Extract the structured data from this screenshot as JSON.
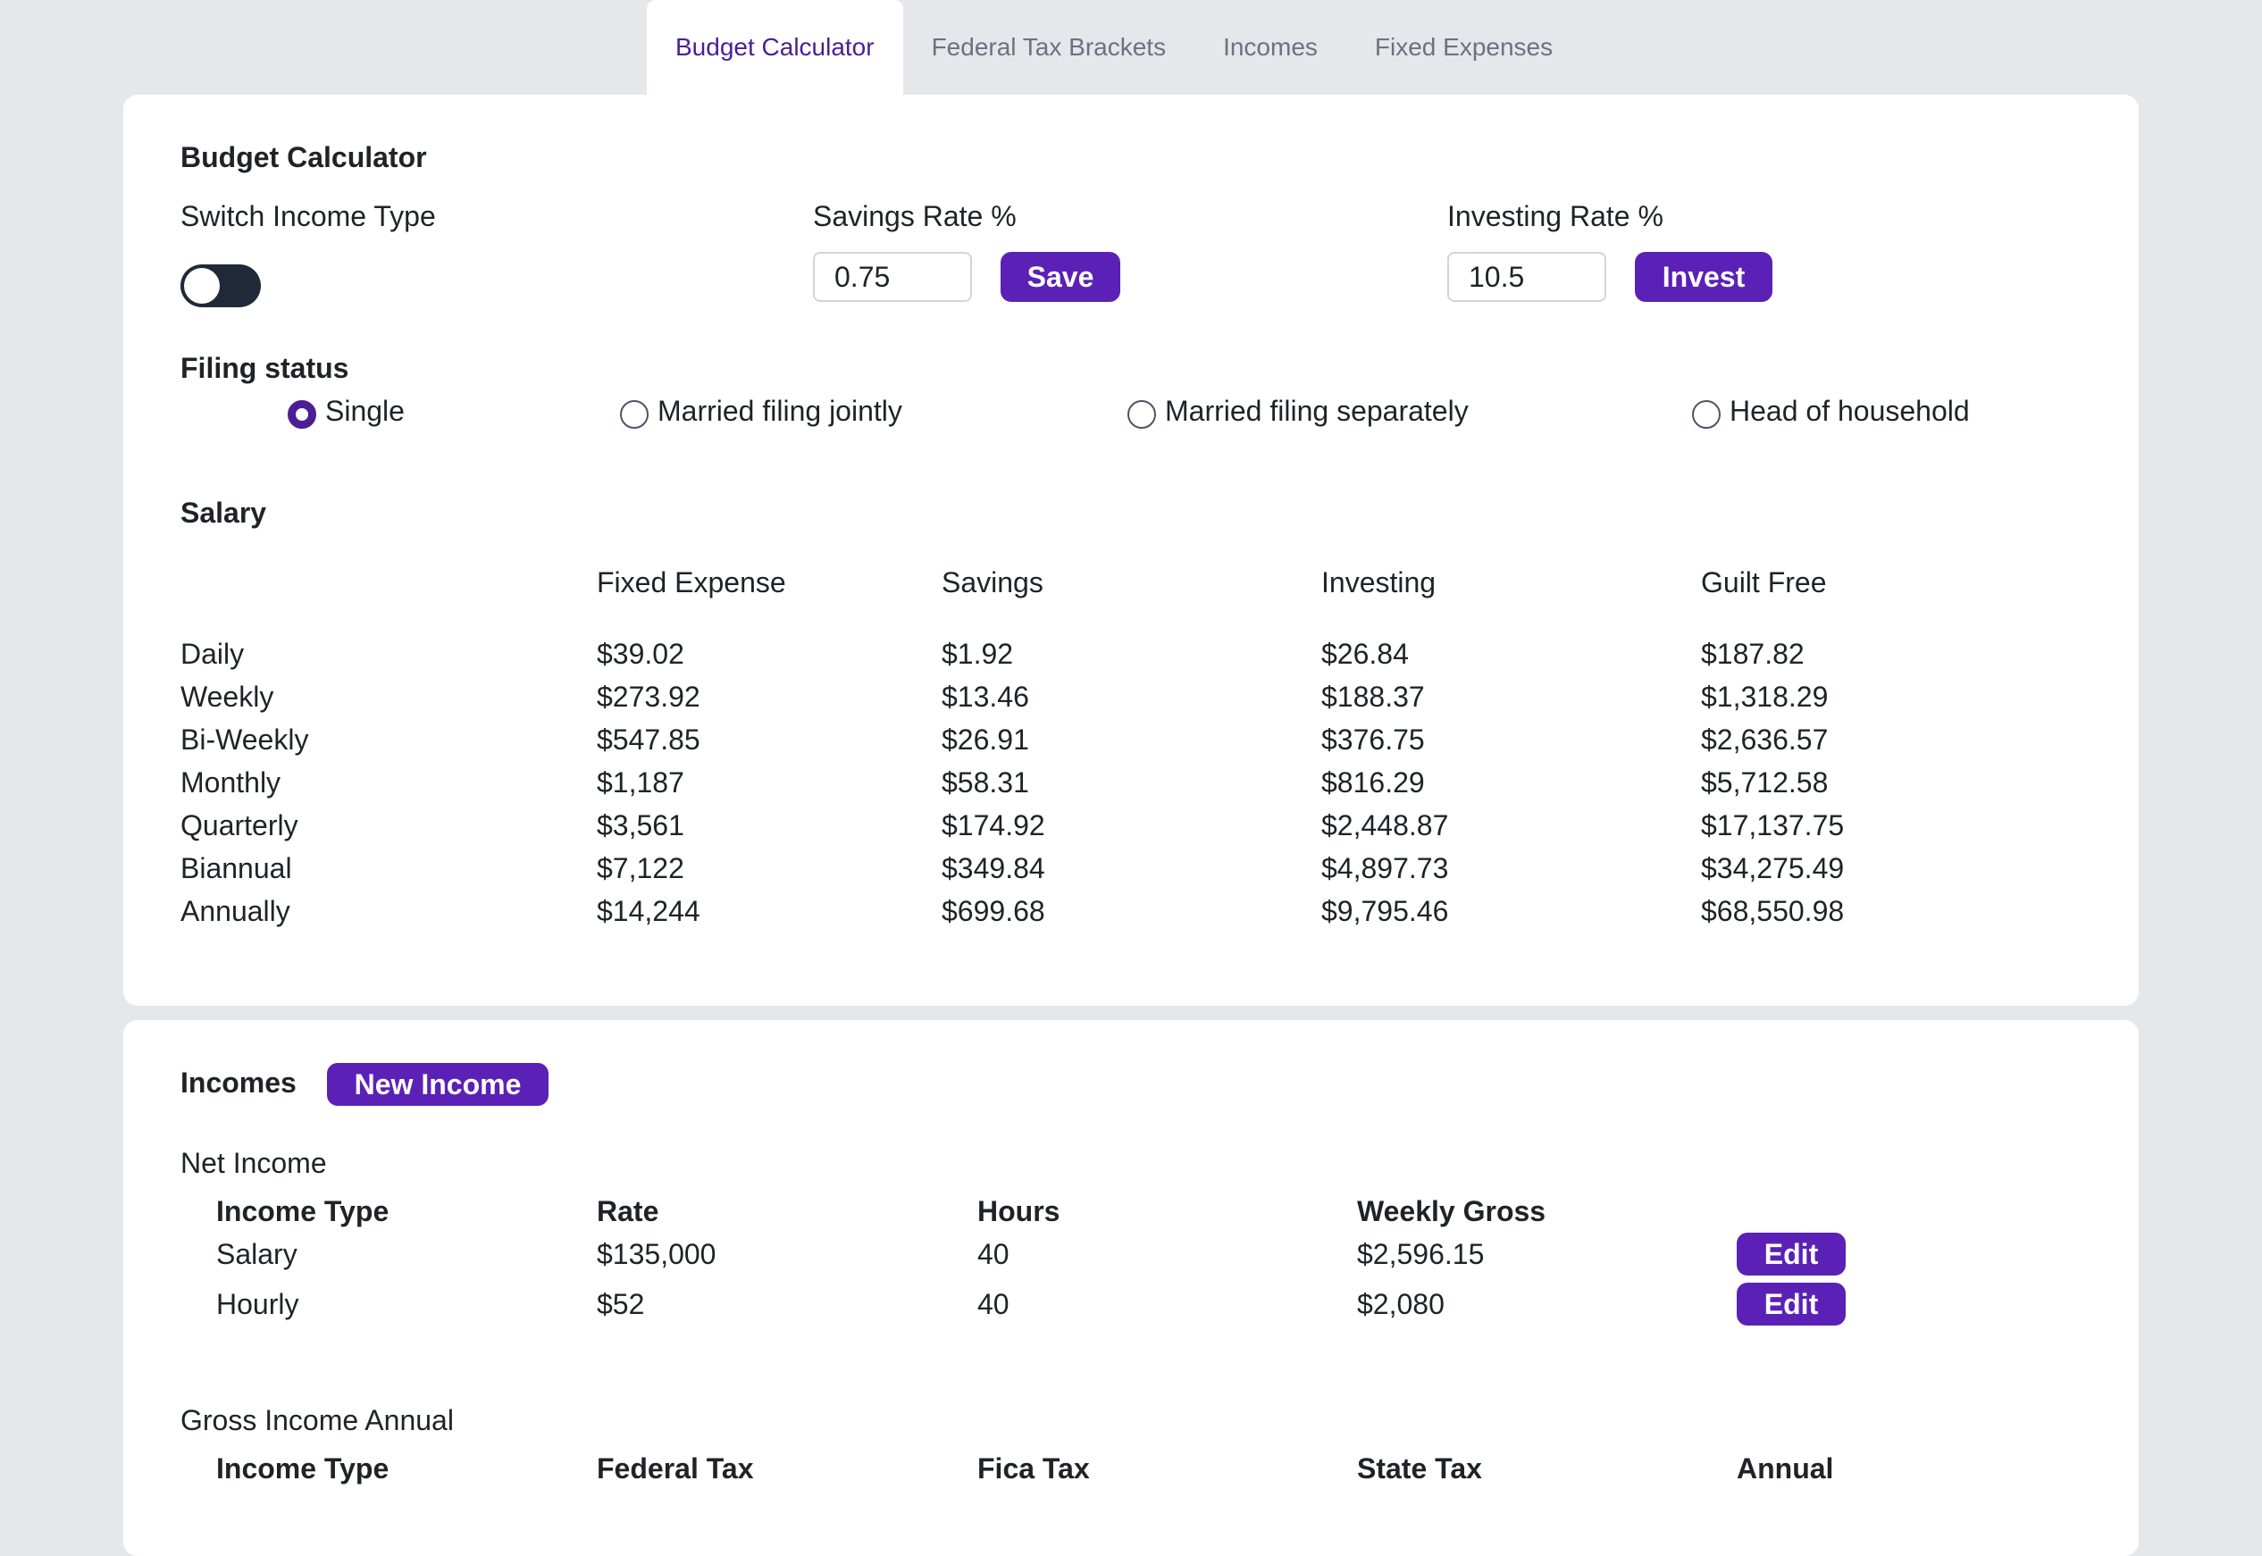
{
  "tabs": [
    {
      "label": "Budget Calculator",
      "active": true
    },
    {
      "label": "Federal Tax Brackets",
      "active": false
    },
    {
      "label": "Incomes",
      "active": false
    },
    {
      "label": "Fixed Expenses",
      "active": false
    }
  ],
  "budget": {
    "title": "Budget Calculator",
    "switch_label": "Switch Income Type",
    "savings_label": "Savings Rate %",
    "savings_value": "0.75",
    "save_button": "Save",
    "investing_label": "Investing Rate %",
    "investing_value": "10.5",
    "invest_button": "Invest",
    "filing_title": "Filing status",
    "filing_options": [
      "Single",
      "Married filing jointly",
      "Married filing separately",
      "Head of household"
    ],
    "filing_selected": "Single",
    "salary_title": "Salary",
    "table_headers": [
      "Fixed Expense",
      "Savings",
      "Investing",
      "Guilt Free"
    ],
    "rows": [
      [
        "Daily",
        "$39.02",
        "$1.92",
        "$26.84",
        "$187.82"
      ],
      [
        "Weekly",
        "$273.92",
        "$13.46",
        "$188.37",
        "$1,318.29"
      ],
      [
        "Bi-Weekly",
        "$547.85",
        "$26.91",
        "$376.75",
        "$2,636.57"
      ],
      [
        "Monthly",
        "$1,187",
        "$58.31",
        "$816.29",
        "$5,712.58"
      ],
      [
        "Quarterly",
        "$3,561",
        "$174.92",
        "$2,448.87",
        "$17,137.75"
      ],
      [
        "Biannual",
        "$7,122",
        "$349.84",
        "$4,897.73",
        "$34,275.49"
      ],
      [
        "Annually",
        "$14,244",
        "$699.68",
        "$9,795.46",
        "$68,550.98"
      ]
    ]
  },
  "incomes": {
    "title": "Incomes",
    "new_button": "New Income",
    "net_title": "Net Income",
    "net_headers": [
      "Income Type",
      "Rate",
      "Hours",
      "Weekly Gross"
    ],
    "net_rows": [
      [
        "Salary",
        "$135,000",
        "40",
        "$2,596.15"
      ],
      [
        "Hourly",
        "$52",
        "40",
        "$2,080"
      ]
    ],
    "edit_label": "Edit",
    "gross_title": "Gross Income Annual",
    "gross_headers": [
      "Income Type",
      "Federal Tax",
      "Fica Tax",
      "State Tax",
      "Annual"
    ]
  },
  "colors": {
    "accent": "#5b21b6",
    "active_tab_text": "#4c1d95",
    "background": "#e5e7eb"
  }
}
